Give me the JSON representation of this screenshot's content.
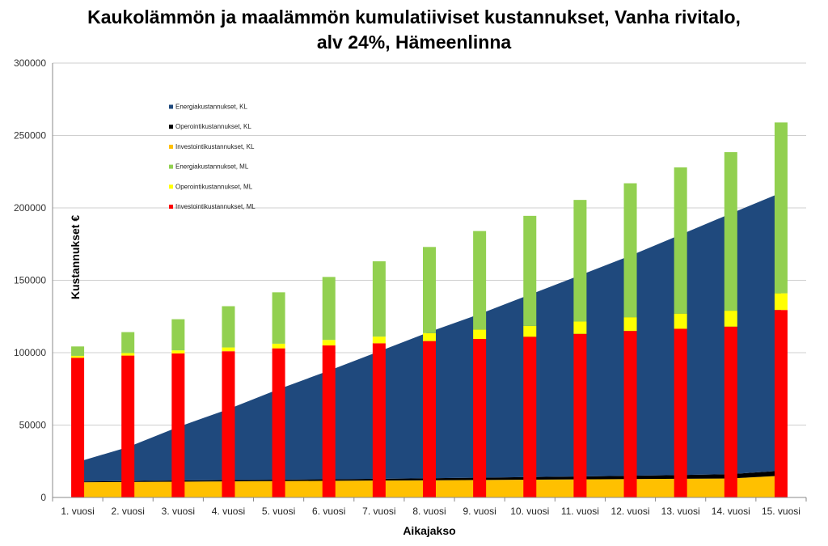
{
  "chart_data": {
    "type": "bar",
    "title_line1": "Kaukolämmön ja maalämmön kumulatiiviset kustannukset, Vanha rivitalo,",
    "title_line2": "alv 24%, Hämeenlinna",
    "xlabel": "Aikajakso",
    "ylabel": "Kustannukset €",
    "ylim": [
      0,
      300000
    ],
    "yticks": [
      "0",
      "50000",
      "100000",
      "150000",
      "200000",
      "250000",
      "300000"
    ],
    "grid": true,
    "legend_position": "top-left",
    "categories": [
      "1. vuosi",
      "2. vuosi",
      "3. vuosi",
      "4. vuosi",
      "5. vuosi",
      "6. vuosi",
      "7. vuosi",
      "8. vuosi",
      "9. vuosi",
      "10. vuosi",
      "11. vuosi",
      "12. vuosi",
      "13. vuosi",
      "14. vuosi",
      "15. vuosi"
    ],
    "area_series": [
      {
        "name": "Energiakustannukset, KL",
        "color": "#1f497d",
        "values": [
          13500,
          23500,
          37000,
          49000,
          62500,
          75000,
          88000,
          101000,
          113000,
          126000,
          139000,
          152000,
          166000,
          180000,
          192000
        ]
      },
      {
        "name": "Operointikustannukset, KL",
        "color": "#000000",
        "values": [
          500,
          600,
          800,
          900,
          1000,
          1100,
          1200,
          1400,
          1600,
          1800,
          2000,
          2300,
          2600,
          3000,
          3500
        ]
      },
      {
        "name": "Investointikustannukset, KL",
        "color": "#ffc000",
        "values": [
          10500,
          10700,
          10900,
          11100,
          11300,
          11500,
          11700,
          11900,
          12100,
          12300,
          12500,
          12700,
          12900,
          13100,
          15000
        ]
      }
    ],
    "bar_series": [
      {
        "name": "Energiakustannukset, ML",
        "color": "#92d050",
        "values": [
          6500,
          14500,
          21500,
          28500,
          35500,
          43500,
          52000,
          59500,
          68000,
          76000,
          84000,
          92500,
          101000,
          109500,
          118000
        ]
      },
      {
        "name": "Operointikustannukset, ML",
        "color": "#ffff00",
        "values": [
          1300,
          1700,
          2100,
          2600,
          3200,
          3800,
          4600,
          5500,
          6500,
          7500,
          8500,
          9500,
          10500,
          11000,
          11500
        ]
      },
      {
        "name": "Investointikustannukset, ML",
        "color": "#ff0000",
        "values": [
          96500,
          98000,
          99500,
          101000,
          103000,
          105000,
          106500,
          108000,
          109500,
          111000,
          113000,
          115000,
          116500,
          118000,
          129500
        ]
      }
    ],
    "legend_order": [
      "Energiakustannukset, KL",
      "Operointikustannukset, KL",
      "Investointikustannukset, KL",
      "Energiakustannukset, ML",
      "Operointikustannukset, ML",
      "Investointikustannukset, ML"
    ]
  }
}
